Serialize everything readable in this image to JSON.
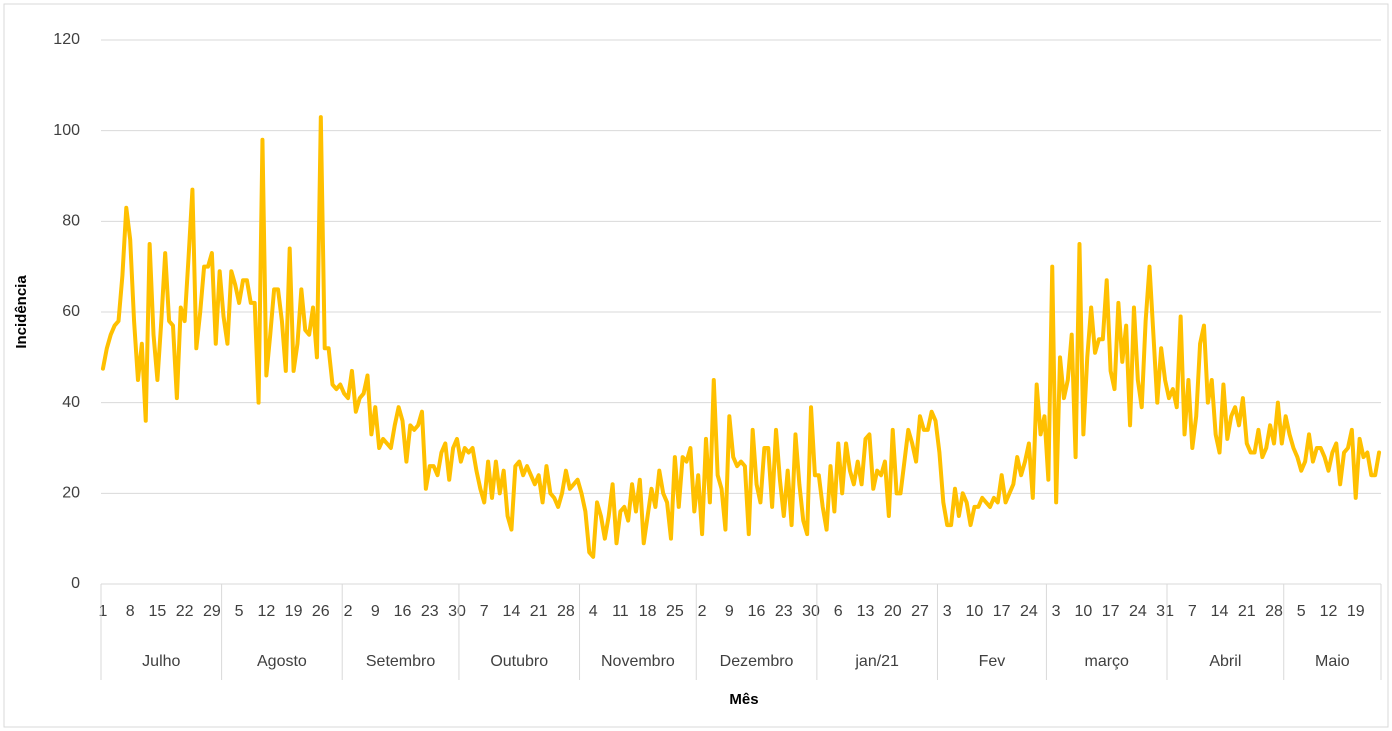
{
  "chart_data": {
    "type": "line",
    "y_label": "Incidência",
    "x_label": "Mês",
    "categories": [
      "1",
      null,
      null,
      null,
      null,
      null,
      null,
      "8",
      null,
      null,
      null,
      null,
      null,
      null,
      "15",
      null,
      null,
      null,
      null,
      null,
      null,
      "22",
      null,
      null,
      null,
      null,
      null,
      null,
      "29",
      null,
      null,
      null,
      null,
      null,
      null,
      "5",
      null,
      null,
      null,
      null,
      null,
      null,
      "12",
      null,
      null,
      null,
      null,
      null,
      null,
      "19",
      null,
      null,
      null,
      null,
      null,
      null,
      "26",
      null,
      null,
      null,
      null,
      null,
      null,
      "2",
      null,
      null,
      null,
      null,
      null,
      null,
      "9",
      null,
      null,
      null,
      null,
      null,
      null,
      "16",
      null,
      null,
      null,
      null,
      null,
      null,
      "23",
      null,
      null,
      null,
      null,
      null,
      null,
      "30",
      null,
      null,
      null,
      null,
      null,
      null,
      "7",
      null,
      null,
      null,
      null,
      null,
      null,
      "14",
      null,
      null,
      null,
      null,
      null,
      null,
      "21",
      null,
      null,
      null,
      null,
      null,
      null,
      "28",
      null,
      null,
      null,
      null,
      null,
      null,
      "4",
      null,
      null,
      null,
      null,
      null,
      null,
      "11",
      null,
      null,
      null,
      null,
      null,
      null,
      "18",
      null,
      null,
      null,
      null,
      null,
      null,
      "25",
      null,
      null,
      null,
      null,
      null,
      null,
      "2",
      null,
      null,
      null,
      null,
      null,
      null,
      "9",
      null,
      null,
      null,
      null,
      null,
      null,
      "16",
      null,
      null,
      null,
      null,
      null,
      null,
      "23",
      null,
      null,
      null,
      null,
      null,
      null,
      "30",
      null,
      null,
      null,
      null,
      null,
      null,
      "6",
      null,
      null,
      null,
      null,
      null,
      null,
      "13",
      null,
      null,
      null,
      null,
      null,
      null,
      "20",
      null,
      null,
      null,
      null,
      null,
      null,
      "27",
      null,
      null,
      null,
      null,
      null,
      null,
      "3",
      null,
      null,
      null,
      null,
      null,
      null,
      "10",
      null,
      null,
      null,
      null,
      null,
      null,
      "17",
      null,
      null,
      null,
      null,
      null,
      null,
      "24",
      null,
      null,
      null,
      null,
      null,
      null,
      "3",
      null,
      null,
      null,
      null,
      null,
      null,
      "10",
      null,
      null,
      null,
      null,
      null,
      null,
      "17",
      null,
      null,
      null,
      null,
      null,
      null,
      "24",
      null,
      null,
      null,
      null,
      null,
      null,
      "31",
      null,
      null,
      null,
      null,
      null,
      null,
      "7",
      null,
      null,
      null,
      null,
      null,
      null,
      "14",
      null,
      null,
      null,
      null,
      null,
      null,
      "21",
      null,
      null,
      null,
      null,
      null,
      null,
      "28",
      null,
      null,
      null,
      null,
      null,
      null,
      "5",
      null,
      null,
      null,
      null,
      null,
      null,
      "12",
      null,
      null,
      null,
      null,
      null,
      null,
      "19",
      null,
      null,
      null,
      null,
      null,
      null
    ],
    "category_groups": [
      {
        "label": "Julho",
        "size": 31
      },
      {
        "label": "Agosto",
        "size": 31
      },
      {
        "label": "Setembro",
        "size": 30
      },
      {
        "label": "Outubro",
        "size": 31
      },
      {
        "label": "Novembro",
        "size": 30
      },
      {
        "label": "Dezembro",
        "size": 31
      },
      {
        "label": "jan/21",
        "size": 31
      },
      {
        "label": "Fev",
        "size": 28
      },
      {
        "label": "março",
        "size": 31
      },
      {
        "label": "Abril",
        "size": 30
      },
      {
        "label": "Maio",
        "size": 25
      }
    ],
    "series": [
      {
        "color": "#ffc000",
        "values": [
          47.5,
          52,
          55,
          57,
          58,
          68,
          83,
          76,
          58,
          45,
          53,
          36,
          75,
          55,
          45,
          58,
          73,
          58,
          57,
          41,
          61,
          58,
          72,
          87,
          52,
          60,
          70,
          70,
          73,
          53,
          69,
          59,
          53,
          69,
          66,
          62,
          67,
          67,
          62,
          62,
          40,
          98,
          46,
          55,
          65,
          65,
          58,
          47,
          74,
          47,
          53,
          65,
          56,
          55,
          61,
          50,
          103,
          52,
          52,
          44,
          43,
          44,
          42,
          41,
          47,
          38,
          41,
          42,
          46,
          33,
          39,
          30,
          32,
          31,
          30,
          35,
          39,
          36,
          27,
          35,
          34,
          35,
          38,
          21,
          26,
          26,
          24,
          29,
          31,
          23,
          30,
          32,
          27,
          30,
          29,
          30,
          25,
          21,
          18,
          27,
          19,
          27,
          20,
          25,
          15,
          12,
          26,
          27,
          24,
          26,
          24,
          22,
          24,
          18,
          26,
          20,
          19,
          17,
          20,
          25,
          21,
          22,
          23,
          20,
          16,
          7,
          6,
          18,
          15,
          10,
          15,
          22,
          9,
          16,
          17,
          14,
          22,
          16,
          23,
          9,
          15,
          21,
          17,
          25,
          20,
          18,
          10,
          28,
          17,
          28,
          27,
          30,
          16,
          24,
          11,
          32,
          18,
          45,
          24,
          21,
          12,
          37,
          28,
          26,
          27,
          26,
          11,
          34,
          22,
          18,
          30,
          30,
          17,
          34,
          23,
          15,
          25,
          13,
          33,
          22,
          14,
          11,
          39,
          24,
          24,
          17,
          12,
          26,
          16,
          31,
          20,
          31,
          25,
          22,
          27,
          22,
          32,
          33,
          21,
          25,
          24,
          27,
          15,
          34,
          20,
          20,
          27,
          34,
          31,
          27,
          37,
          34,
          34,
          38,
          36,
          29,
          18,
          13,
          13,
          21,
          15,
          20,
          18,
          13,
          17,
          17,
          19,
          18,
          17,
          19,
          18,
          24,
          18,
          20,
          22,
          28,
          24,
          27,
          31,
          19,
          44,
          33,
          37,
          23,
          70,
          18,
          50,
          41,
          45,
          55,
          28,
          75,
          33,
          50,
          61,
          51,
          54,
          54,
          67,
          47,
          43,
          62,
          49,
          57,
          35,
          61,
          45,
          39,
          58,
          70,
          55,
          40,
          52,
          45,
          41,
          43,
          39,
          59,
          33,
          45,
          30,
          37,
          53,
          57,
          40,
          45,
          33,
          29,
          44,
          32,
          37,
          39,
          35,
          41,
          31,
          29,
          29,
          34,
          28,
          30,
          35,
          31,
          40,
          31,
          37,
          33,
          30,
          28,
          25,
          27,
          33,
          27,
          30,
          30,
          28,
          25,
          29,
          31,
          22,
          29,
          30,
          34,
          19,
          32,
          28,
          29,
          24,
          24,
          29
        ]
      }
    ],
    "ylim": [
      0,
      120
    ],
    "yticks": [
      0,
      20,
      40,
      60,
      80,
      100,
      120
    ],
    "grid": true
  }
}
